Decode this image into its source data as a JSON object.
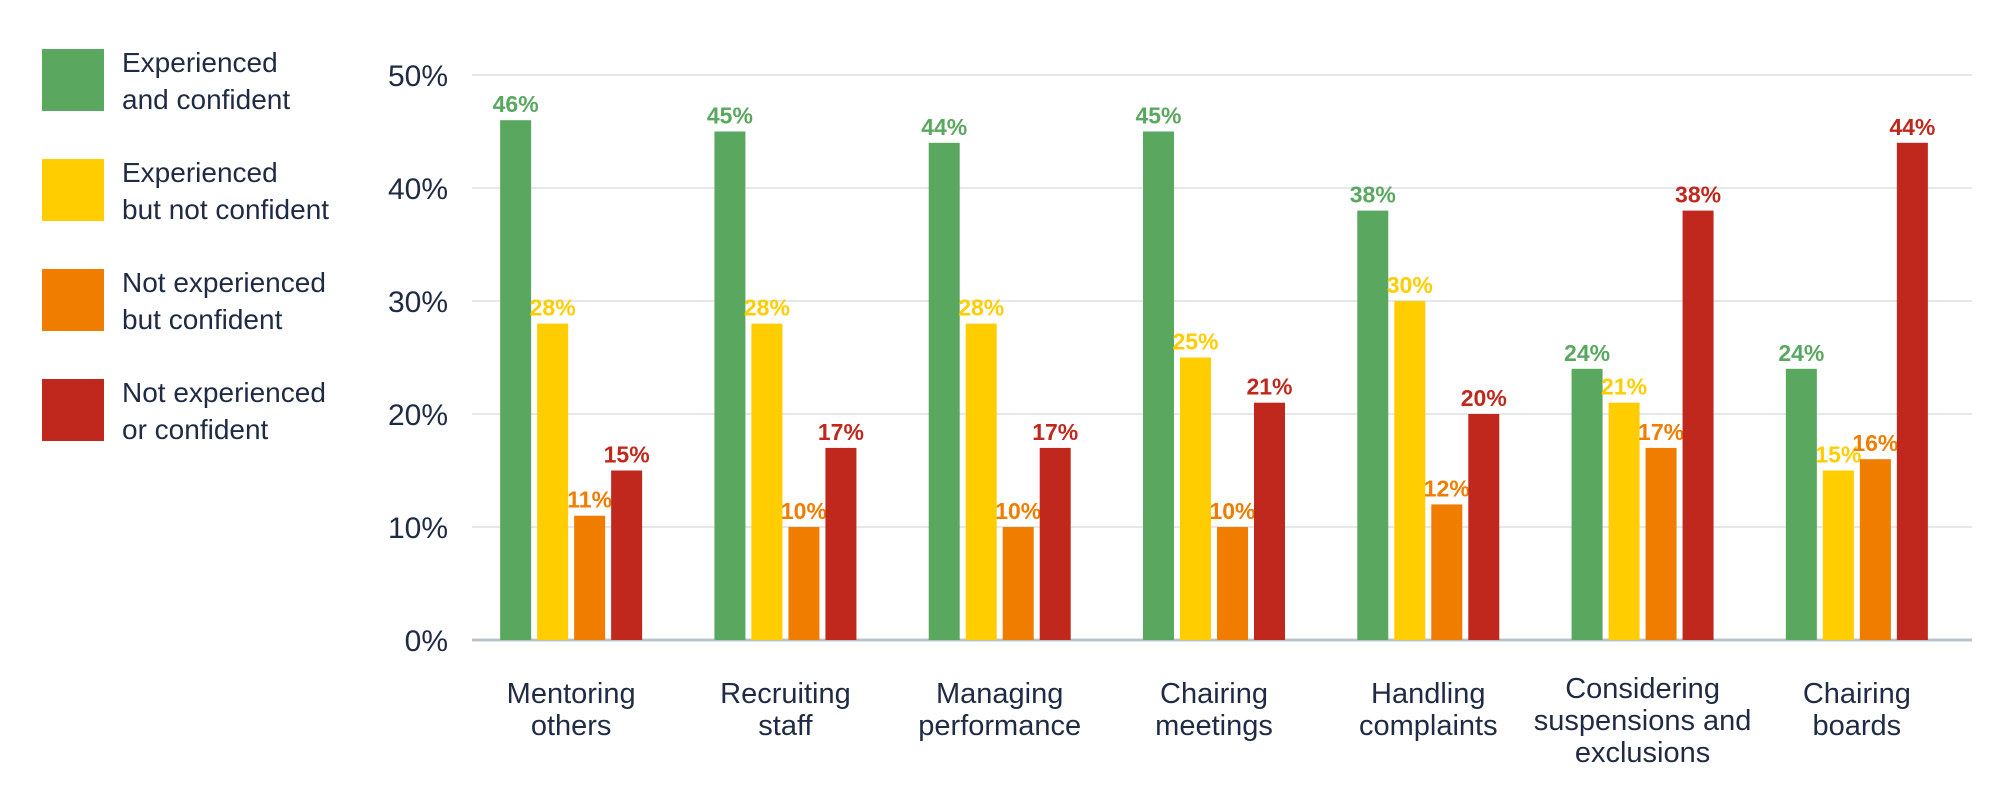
{
  "colors": {
    "experienced_confident": "#5aa860",
    "experienced_not_confident": "#ffcd00",
    "not_experienced_confident": "#f07d00",
    "not_experienced_not_confident": "#c0281e",
    "axis": "#b9c4cc",
    "grid": "#e4e8ea",
    "text": "#1f2a44"
  },
  "chart_data": {
    "type": "bar",
    "title": "",
    "xlabel": "",
    "ylabel": "",
    "ylim": [
      0,
      50
    ],
    "yticks": [
      "0%",
      "10%",
      "20%",
      "30%",
      "40%",
      "50%"
    ],
    "grid": true,
    "legend_position": "left",
    "categories": [
      [
        "Mentoring",
        "others"
      ],
      [
        "Recruiting",
        "staff"
      ],
      [
        "Managing",
        "performance"
      ],
      [
        "Chairing",
        "meetings"
      ],
      [
        "Handling",
        "complaints"
      ],
      [
        "Considering",
        "suspensions and",
        "exclusions"
      ],
      [
        "Chairing",
        "boards"
      ]
    ],
    "series": [
      {
        "name": "Experienced\nand confident",
        "color_key": "experienced_confident",
        "values": [
          46,
          45,
          44,
          45,
          38,
          24,
          24
        ],
        "labels": [
          "46%",
          "45%",
          "44%",
          "45%",
          "38%",
          "24%",
          "24%"
        ]
      },
      {
        "name": "Experienced\nbut not confident",
        "color_key": "experienced_not_confident",
        "values": [
          28,
          28,
          28,
          25,
          30,
          21,
          15
        ],
        "labels": [
          "28%",
          "28%",
          "28%",
          "25%",
          "30%",
          "21%",
          "15%"
        ]
      },
      {
        "name": "Not experienced\nbut confident",
        "color_key": "not_experienced_confident",
        "values": [
          11,
          10,
          10,
          10,
          12,
          17,
          16
        ],
        "labels": [
          "11%",
          "10%",
          "10%",
          "10%",
          "12%",
          "17%",
          "16%"
        ]
      },
      {
        "name": "Not experienced\nor confident",
        "color_key": "not_experienced_not_confident",
        "values": [
          15,
          17,
          17,
          21,
          20,
          38,
          44
        ],
        "labels": [
          "15%",
          "17%",
          "17%",
          "21%",
          "20%",
          "38%",
          "44%"
        ]
      }
    ]
  }
}
